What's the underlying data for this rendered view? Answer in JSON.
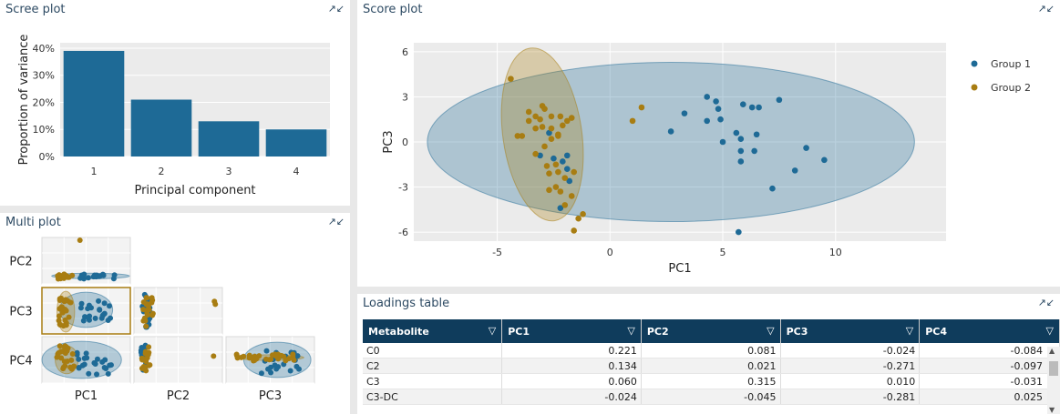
{
  "colors": {
    "group1": "#1e6a96",
    "group2": "#a87d12",
    "bar": "#1e6a96",
    "header": "#0f3c5c"
  },
  "panels": {
    "scree_title": "Scree plot",
    "multi_title": "Multi plot",
    "score_title": "Score plot",
    "loadings_title": "Loadings table",
    "expand_icon": "collapse-arrows-icon"
  },
  "chart_data": [
    {
      "type": "bar",
      "name": "scree",
      "categories": [
        "1",
        "2",
        "3",
        "4"
      ],
      "values": [
        0.39,
        0.21,
        0.13,
        0.1
      ],
      "xlabel": "Principal component",
      "ylabel": "Proportion of variance",
      "yticks": [
        "0%",
        "10%",
        "20%",
        "30%",
        "40%"
      ],
      "ylim": [
        0,
        0.42
      ]
    },
    {
      "type": "scatter",
      "name": "score",
      "xlabel": "PC1",
      "ylabel": "PC3",
      "xlim": [
        -8.7,
        14.9
      ],
      "ylim": [
        -6.6,
        6.6
      ],
      "xticks": [
        -5,
        0,
        5,
        10
      ],
      "yticks": [
        -6,
        -3,
        0,
        3,
        6
      ],
      "legend": {
        "position": "right",
        "entries": [
          "Group 1",
          "Group 2"
        ]
      },
      "ellipses": [
        {
          "series": "Group 1",
          "cx": 2.7,
          "cy": 0,
          "rx": 10.8,
          "ry": 5.3,
          "angle": 0
        },
        {
          "series": "Group 2",
          "cx": -3.0,
          "cy": 0.5,
          "rx": 1.75,
          "ry": 5.8,
          "angle": -8
        }
      ],
      "series": [
        {
          "name": "Group 1",
          "points": [
            [
              5.7,
              -6
            ],
            [
              7.2,
              -3.1
            ],
            [
              8.2,
              -1.9
            ],
            [
              9.5,
              -1.2
            ],
            [
              8.7,
              -0.4
            ],
            [
              5.8,
              -1.3
            ],
            [
              5.8,
              -0.6
            ],
            [
              5.6,
              0.6
            ],
            [
              6.5,
              0.5
            ],
            [
              5.0,
              0
            ],
            [
              6.4,
              -0.6
            ],
            [
              5.8,
              0.2
            ],
            [
              4.9,
              1.5
            ],
            [
              4.3,
              1.4
            ],
            [
              3.3,
              1.9
            ],
            [
              2.7,
              0.7
            ],
            [
              4.3,
              3.0
            ],
            [
              4.7,
              2.7
            ],
            [
              5.9,
              2.5
            ],
            [
              6.3,
              2.3
            ],
            [
              6.6,
              2.3
            ],
            [
              7.5,
              2.8
            ],
            [
              4.8,
              2.2
            ],
            [
              -2.7,
              0.6
            ],
            [
              -2.5,
              -1.1
            ],
            [
              -2.1,
              -1.3
            ],
            [
              -1.9,
              -0.9
            ],
            [
              -1.8,
              -2.6
            ],
            [
              -2.2,
              -4.4
            ],
            [
              -3.1,
              -0.9
            ],
            [
              -1.9,
              -1.8
            ]
          ]
        },
        {
          "name": "Group 2",
          "points": [
            [
              -4.4,
              4.2
            ],
            [
              -3.6,
              1.4
            ],
            [
              -3.6,
              2.0
            ],
            [
              -3.0,
              2.4
            ],
            [
              -2.9,
              2.2
            ],
            [
              -3.3,
              1.7
            ],
            [
              -3.1,
              1.5
            ],
            [
              -2.6,
              1.7
            ],
            [
              -2.2,
              1.7
            ],
            [
              -2.1,
              1.1
            ],
            [
              -2.3,
              0.5
            ],
            [
              -2.6,
              0.2
            ],
            [
              -2.9,
              -0.3
            ],
            [
              -3.3,
              -0.8
            ],
            [
              -2.8,
              -1.6
            ],
            [
              -2.4,
              -1.5
            ],
            [
              -2.7,
              -2.1
            ],
            [
              -2.3,
              -2.0
            ],
            [
              -2.0,
              -2.4
            ],
            [
              -1.6,
              -2.0
            ],
            [
              -2.7,
              -3.2
            ],
            [
              -2.4,
              -3.0
            ],
            [
              -2.2,
              -3.3
            ],
            [
              -1.7,
              -3.6
            ],
            [
              -2.0,
              -4.2
            ],
            [
              -1.2,
              -4.8
            ],
            [
              -1.4,
              -5.1
            ],
            [
              -1.6,
              -5.9
            ],
            [
              -4.1,
              0.4
            ],
            [
              -3.9,
              0.4
            ],
            [
              -1.9,
              1.4
            ],
            [
              1.4,
              2.3
            ],
            [
              1.0,
              1.4
            ],
            [
              -3.3,
              0.9
            ],
            [
              -3.0,
              1.0
            ],
            [
              -2.6,
              0.9
            ],
            [
              -2.3,
              0.4
            ],
            [
              -1.7,
              1.6
            ]
          ]
        }
      ]
    },
    {
      "type": "scatter",
      "name": "multi",
      "row_labels": [
        "PC2",
        "PC3",
        "PC4"
      ],
      "col_labels": [
        "PC1",
        "PC2",
        "PC3"
      ],
      "series": [
        "Group 1",
        "Group 2"
      ]
    }
  ],
  "loadings": {
    "headers": [
      "Metabolite",
      "PC1",
      "PC2",
      "PC3",
      "PC4"
    ],
    "filter_icon": "filter-icon",
    "rows": [
      [
        "C0",
        "0.221",
        "0.081",
        "-0.024",
        "-0.084"
      ],
      [
        "C2",
        "0.134",
        "0.021",
        "-0.271",
        "-0.097"
      ],
      [
        "C3",
        "0.060",
        "0.315",
        "0.010",
        "-0.031"
      ],
      [
        "C3-DC",
        "-0.024",
        "-0.045",
        "-0.281",
        "0.025"
      ]
    ]
  }
}
